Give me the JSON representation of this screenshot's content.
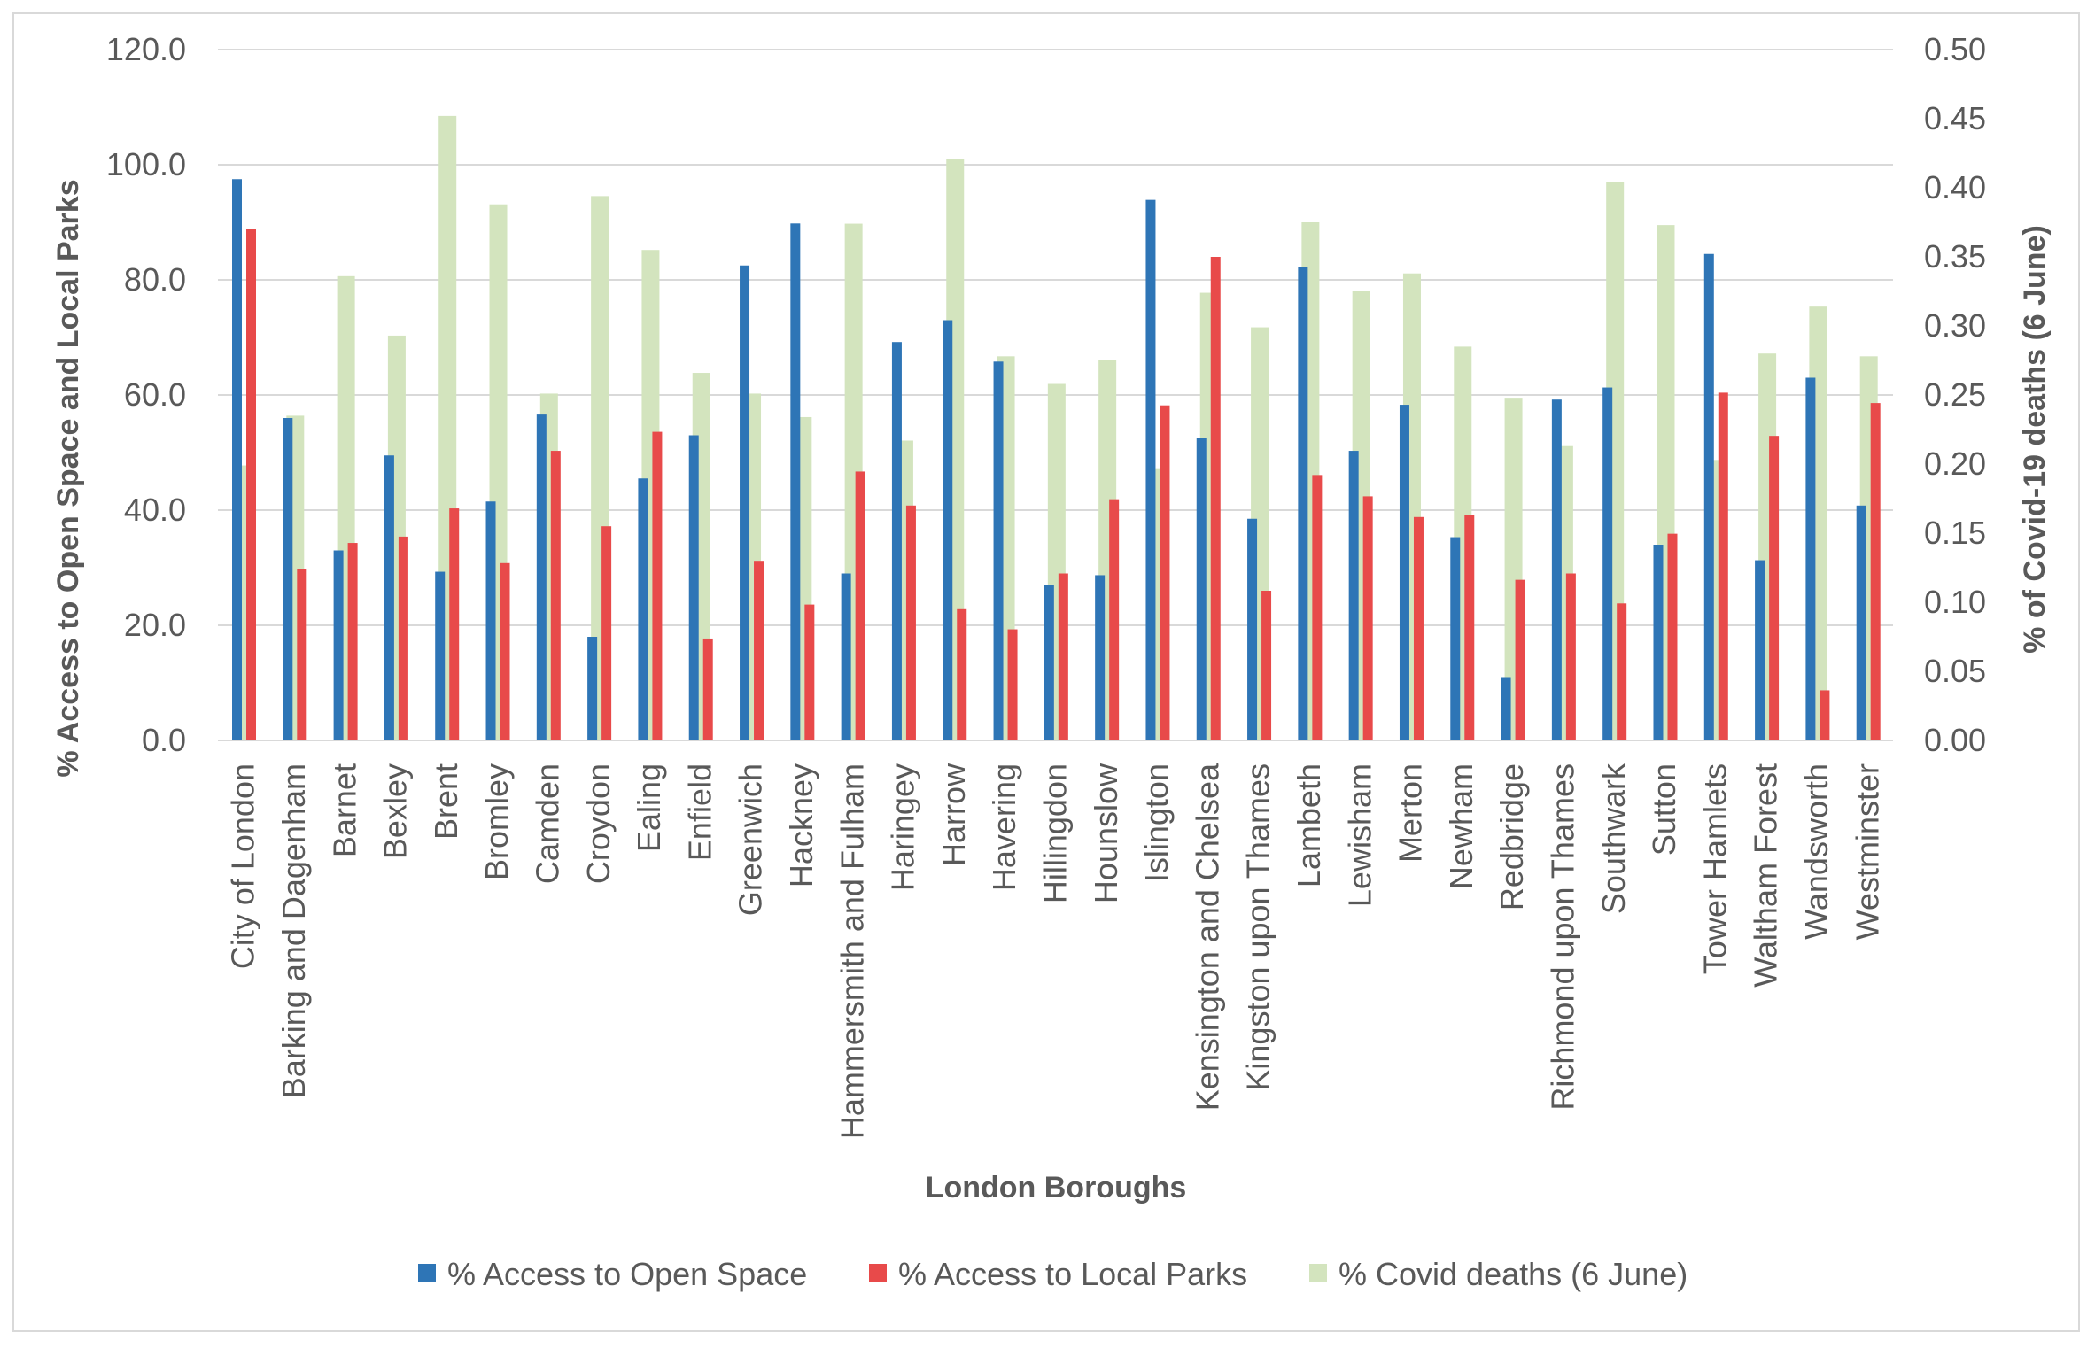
{
  "chart_data": {
    "type": "bar",
    "xlabel": "London Boroughs",
    "ylabel": "% Access to Open Space and Local Parks",
    "y2label": "% of Covid-19 deaths (6 June)",
    "ylim": [
      0,
      120
    ],
    "y2lim": [
      0,
      0.5
    ],
    "yticks": [
      "0.0",
      "20.0",
      "40.0",
      "60.0",
      "80.0",
      "100.0",
      "120.0"
    ],
    "y2ticks": [
      "0.00",
      "0.05",
      "0.10",
      "0.15",
      "0.20",
      "0.25",
      "0.30",
      "0.35",
      "0.40",
      "0.45",
      "0.50"
    ],
    "grid": true,
    "legend_position": "bottom",
    "categories": [
      "City of London",
      "Barking and Dagenham",
      "Barnet",
      "Bexley",
      "Brent",
      "Bromley",
      "Camden",
      "Croydon",
      "Ealing",
      "Enfield",
      "Greenwich",
      "Hackney",
      "Hammersmith and Fulham",
      "Haringey",
      "Harrow",
      "Havering",
      "Hillingdon",
      "Hounslow",
      "Islington",
      "Kensington and Chelsea",
      "Kingston upon Thames",
      "Lambeth",
      "Lewisham",
      "Merton",
      "Newham",
      "Redbridge",
      "Richmond upon Thames",
      "Southwark",
      "Sutton",
      "Tower Hamlets",
      "Waltham Forest",
      "Wandsworth",
      "Westminster"
    ],
    "series": [
      {
        "name": "% Access to Open Space",
        "color": "#2e75b6",
        "axis": "left",
        "values": [
          97.5,
          56.0,
          33.0,
          49.5,
          29.3,
          41.5,
          56.6,
          18.0,
          45.5,
          53.0,
          82.5,
          89.8,
          29.0,
          69.2,
          73.0,
          65.8,
          27.0,
          28.7,
          93.9,
          52.5,
          38.5,
          82.3,
          50.3,
          58.3,
          35.3,
          11.0,
          59.2,
          61.3,
          34.0,
          84.5,
          31.3,
          63.0,
          40.8
        ]
      },
      {
        "name": "% Access to Local Parks",
        "color": "#e84a4a",
        "axis": "left",
        "values": [
          88.8,
          29.8,
          34.3,
          35.4,
          40.3,
          30.8,
          50.3,
          37.2,
          53.6,
          17.7,
          31.2,
          23.6,
          46.7,
          40.8,
          22.8,
          19.3,
          29.0,
          41.9,
          58.2,
          84.0,
          26.0,
          46.1,
          42.4,
          38.8,
          39.1,
          27.9,
          29.0,
          23.8,
          35.9,
          60.4,
          52.9,
          8.7,
          58.6
        ]
      },
      {
        "name": "% Covid deaths (6 June)",
        "color": "#d3e4be",
        "axis": "right",
        "values": [
          0.199,
          0.235,
          0.336,
          0.293,
          0.452,
          0.388,
          0.251,
          0.394,
          0.355,
          0.266,
          0.251,
          0.234,
          0.374,
          0.217,
          0.421,
          0.278,
          0.258,
          0.275,
          0.197,
          0.324,
          0.299,
          0.375,
          0.325,
          0.338,
          0.285,
          0.248,
          0.213,
          0.404,
          0.373,
          0.203,
          0.28,
          0.314,
          0.278
        ]
      }
    ]
  }
}
